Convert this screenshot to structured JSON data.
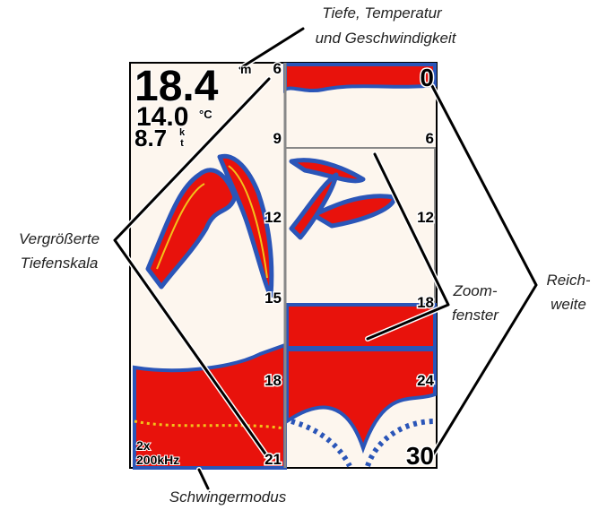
{
  "callouts": {
    "readouts": [
      "Tiefe, Temperatur",
      "und Geschwindigkeit"
    ],
    "scale": [
      "Vergrößerte",
      "Tiefenskala"
    ],
    "zoom": [
      "Zoom-",
      "fenster"
    ],
    "range": [
      "Reich-",
      "weite"
    ],
    "transducer": "Schwingermodus"
  },
  "screen": {
    "depth": "18.4",
    "depth_unit": "m",
    "temperature": "14.0",
    "temperature_unit": "°C",
    "speed": "8.7",
    "speed_unit": "kt",
    "zoom_mode": "2x",
    "frequency": "200kHz",
    "left_scale": [
      "6",
      "9",
      "12",
      "15",
      "18",
      "21"
    ],
    "right_scale": [
      "0",
      "6",
      "12",
      "18",
      "24",
      "30"
    ]
  }
}
